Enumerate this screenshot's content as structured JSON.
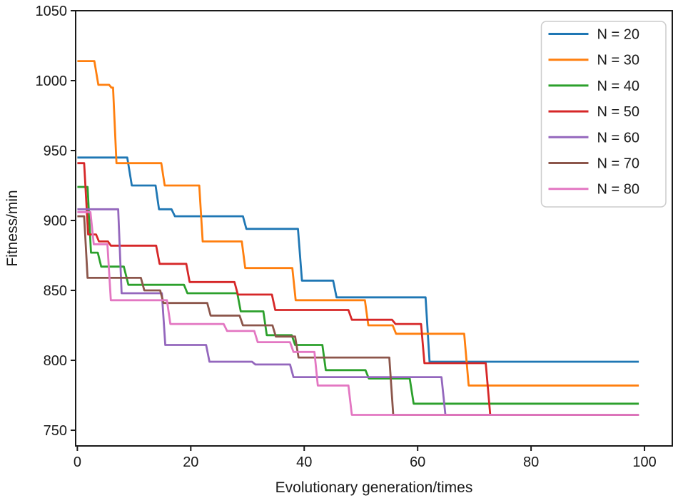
{
  "figure": {
    "background": "#ffffff",
    "spine_color": "#1a1a1a",
    "xlabel": "Evolutionary generation/times",
    "ylabel": "Fitness/min"
  },
  "chart_data": {
    "type": "line",
    "style": "step",
    "title": "",
    "xlabel": "Evolutionary generation/times",
    "ylabel": "Fitness/min",
    "xlim": [
      -0.3,
      104.9
    ],
    "ylim": [
      738.8,
      1050
    ],
    "xticks": [
      0,
      20,
      40,
      60,
      80,
      100
    ],
    "yticks": [
      750,
      800,
      850,
      900,
      950,
      1000,
      1050
    ],
    "grid": false,
    "legend_position": "upper right",
    "line_width": 2.8,
    "series": [
      {
        "name": "N = 20",
        "color": "#1f77b4",
        "points": [
          [
            0,
            945
          ],
          [
            8.8,
            945
          ],
          [
            9.6,
            925
          ],
          [
            13.8,
            925
          ],
          [
            14.4,
            908
          ],
          [
            16.6,
            908
          ],
          [
            17.2,
            903
          ],
          [
            29.2,
            903
          ],
          [
            29.8,
            894
          ],
          [
            38.9,
            894
          ],
          [
            39.6,
            857
          ],
          [
            45.1,
            857
          ],
          [
            45.7,
            845
          ],
          [
            61.4,
            845
          ],
          [
            62.1,
            799
          ],
          [
            99,
            799
          ]
        ]
      },
      {
        "name": "N = 30",
        "color": "#ff7f0e",
        "points": [
          [
            0,
            1014
          ],
          [
            3.0,
            1014
          ],
          [
            3.7,
            997
          ],
          [
            5.6,
            997
          ],
          [
            6.0,
            995
          ],
          [
            6.3,
            995
          ],
          [
            6.9,
            941
          ],
          [
            14.8,
            941
          ],
          [
            15.4,
            925
          ],
          [
            21.5,
            925
          ],
          [
            22.1,
            885
          ],
          [
            29.0,
            885
          ],
          [
            29.6,
            866
          ],
          [
            37.9,
            866
          ],
          [
            38.5,
            843
          ],
          [
            50.7,
            843
          ],
          [
            51.3,
            825
          ],
          [
            55.6,
            825
          ],
          [
            56.2,
            819
          ],
          [
            68.2,
            819
          ],
          [
            69.0,
            782
          ],
          [
            99,
            782
          ]
        ]
      },
      {
        "name": "N = 40",
        "color": "#2ca02c",
        "points": [
          [
            0,
            924
          ],
          [
            1.8,
            924
          ],
          [
            2.4,
            877
          ],
          [
            3.6,
            877
          ],
          [
            4.2,
            867
          ],
          [
            8.2,
            867
          ],
          [
            9.0,
            854
          ],
          [
            18.8,
            854
          ],
          [
            19.4,
            848
          ],
          [
            28.2,
            848
          ],
          [
            28.8,
            835
          ],
          [
            32.8,
            835
          ],
          [
            33.4,
            818
          ],
          [
            37.8,
            818
          ],
          [
            38.4,
            811
          ],
          [
            43.2,
            811
          ],
          [
            43.8,
            793
          ],
          [
            50.8,
            793
          ],
          [
            51.4,
            787
          ],
          [
            58.6,
            787
          ],
          [
            59.3,
            769
          ],
          [
            99,
            769
          ]
        ]
      },
      {
        "name": "N = 50",
        "color": "#d62728",
        "points": [
          [
            0,
            941
          ],
          [
            1.2,
            941
          ],
          [
            1.9,
            890
          ],
          [
            3.3,
            890
          ],
          [
            3.8,
            885
          ],
          [
            5.4,
            885
          ],
          [
            5.9,
            882
          ],
          [
            13.9,
            882
          ],
          [
            14.5,
            869
          ],
          [
            19.2,
            869
          ],
          [
            19.8,
            856
          ],
          [
            27.7,
            856
          ],
          [
            28.3,
            847
          ],
          [
            34.3,
            847
          ],
          [
            34.9,
            836
          ],
          [
            47.8,
            836
          ],
          [
            48.4,
            829
          ],
          [
            55.5,
            829
          ],
          [
            56.1,
            826
          ],
          [
            60.6,
            826
          ],
          [
            61.2,
            798
          ],
          [
            72.0,
            798
          ],
          [
            72.8,
            761
          ],
          [
            99,
            761
          ]
        ]
      },
      {
        "name": "N = 60",
        "color": "#9467bd",
        "points": [
          [
            0,
            908
          ],
          [
            7.2,
            908
          ],
          [
            7.8,
            848
          ],
          [
            14.9,
            848
          ],
          [
            15.5,
            811
          ],
          [
            22.7,
            811
          ],
          [
            23.3,
            799
          ],
          [
            30.8,
            799
          ],
          [
            31.4,
            797
          ],
          [
            37.5,
            797
          ],
          [
            38.1,
            788
          ],
          [
            64.2,
            788
          ],
          [
            64.9,
            761
          ],
          [
            99,
            761
          ]
        ]
      },
      {
        "name": "N = 70",
        "color": "#8c564b",
        "points": [
          [
            0,
            903
          ],
          [
            1.2,
            903
          ],
          [
            1.8,
            859
          ],
          [
            11.2,
            859
          ],
          [
            11.8,
            850
          ],
          [
            14.6,
            850
          ],
          [
            15.2,
            841
          ],
          [
            22.9,
            841
          ],
          [
            23.5,
            832
          ],
          [
            28.6,
            832
          ],
          [
            29.2,
            825
          ],
          [
            34.4,
            825
          ],
          [
            35.0,
            817
          ],
          [
            38.4,
            817
          ],
          [
            39.0,
            802
          ],
          [
            55.0,
            802
          ],
          [
            55.7,
            761
          ],
          [
            99,
            761
          ]
        ]
      },
      {
        "name": "N = 80",
        "color": "#e377c2",
        "points": [
          [
            0,
            906
          ],
          [
            2.3,
            906
          ],
          [
            2.9,
            883
          ],
          [
            5.3,
            883
          ],
          [
            5.9,
            843
          ],
          [
            15.8,
            843
          ],
          [
            16.4,
            826
          ],
          [
            25.8,
            826
          ],
          [
            26.4,
            821
          ],
          [
            31.2,
            821
          ],
          [
            31.8,
            813
          ],
          [
            37.5,
            813
          ],
          [
            38.1,
            806
          ],
          [
            41.8,
            806
          ],
          [
            42.4,
            782
          ],
          [
            47.8,
            782
          ],
          [
            48.4,
            761
          ],
          [
            99,
            761
          ]
        ]
      }
    ],
    "legend": {
      "border_color": "#cccccc",
      "background": "#ffffff",
      "items": [
        "N = 20",
        "N = 30",
        "N = 40",
        "N = 50",
        "N = 60",
        "N = 70",
        "N = 80"
      ]
    }
  }
}
